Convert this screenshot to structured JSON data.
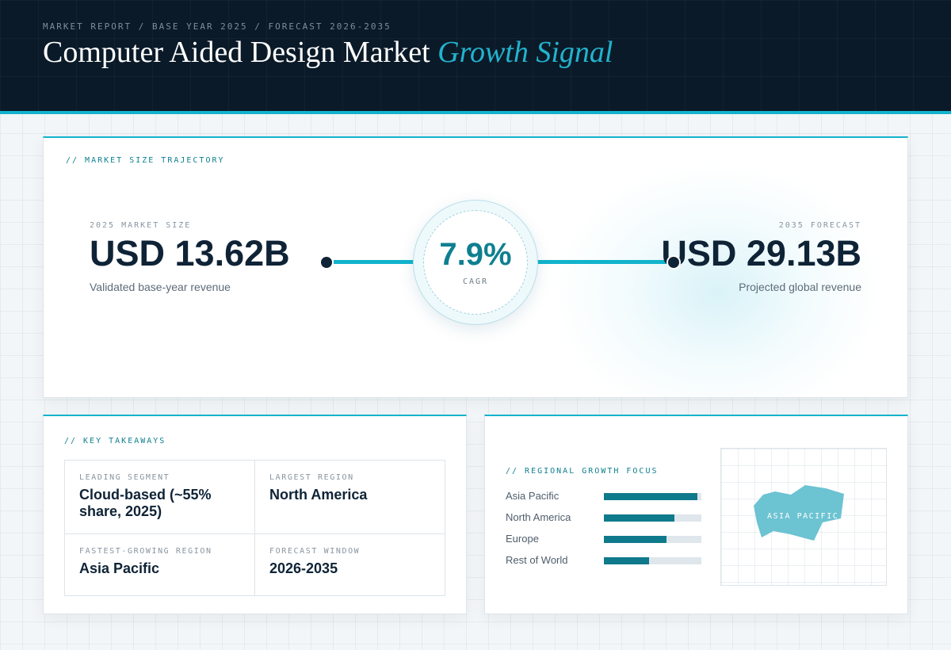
{
  "header": {
    "breadcrumb": "MARKET REPORT / BASE YEAR 2025 / FORECAST 2026-2035",
    "title_main": "Computer Aided Design Market",
    "title_accent": "Growth Signal"
  },
  "trajectory": {
    "label": "// MARKET SIZE TRAJECTORY",
    "base": {
      "caption": "2025 MARKET SIZE",
      "value": "USD 13.62B",
      "sub": "Validated base-year revenue"
    },
    "forecast": {
      "caption": "2035 FORECAST",
      "value": "USD 29.13B",
      "sub": "Projected global revenue"
    },
    "cagr": {
      "value": "7.9%",
      "label": "CAGR"
    }
  },
  "takeaways": {
    "label": "// KEY TAKEAWAYS",
    "cells": [
      {
        "caption": "LEADING SEGMENT",
        "value": "Cloud-based (~55% share, 2025)"
      },
      {
        "caption": "LARGEST REGION",
        "value": "North America"
      },
      {
        "caption": "FASTEST-GROWING REGION",
        "value": "Asia Pacific"
      },
      {
        "caption": "FORECAST WINDOW",
        "value": "2026-2035"
      }
    ]
  },
  "regional": {
    "label": "// REGIONAL GROWTH FOCUS",
    "map_label": "ASIA PACIFIC",
    "accent_color": "#0f7a8c",
    "map_fill": "#6cc3d2"
  },
  "chart_data": {
    "type": "bar",
    "orientation": "horizontal",
    "categories": [
      "Asia Pacific",
      "North America",
      "Europe",
      "Rest of World"
    ],
    "values": [
      96,
      72,
      64,
      46
    ],
    "xlim": [
      0,
      100
    ],
    "grid": false
  }
}
